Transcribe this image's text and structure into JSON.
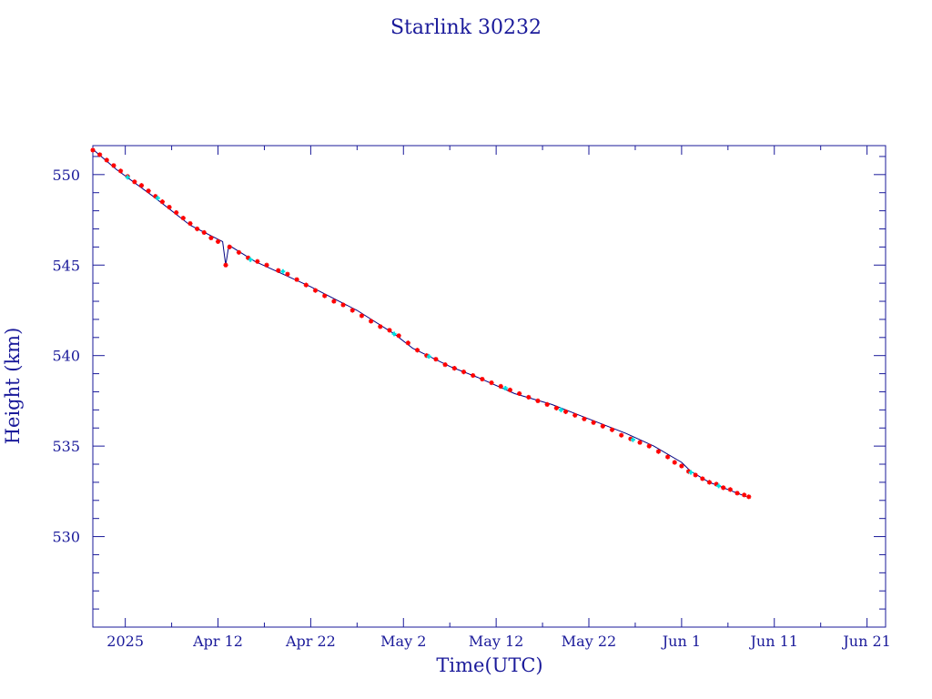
{
  "chart_data": {
    "type": "scatter",
    "title": "Starlink 30232",
    "xlabel": "Time(UTC)",
    "ylabel": "Height (km)",
    "x_axis": {
      "kind": "date",
      "range": [
        "2025-03-29T12:00",
        "2025-06-23T00:00"
      ],
      "tick_labels": [
        {
          "date": "2025-04-02",
          "label": "2025"
        },
        {
          "date": "2025-04-12",
          "label": "Apr 12"
        },
        {
          "date": "2025-04-22",
          "label": "Apr 22"
        },
        {
          "date": "2025-05-02",
          "label": "May  2"
        },
        {
          "date": "2025-05-12",
          "label": "May 12"
        },
        {
          "date": "2025-05-22",
          "label": "May 22"
        },
        {
          "date": "2025-06-01",
          "label": "Jun  1"
        },
        {
          "date": "2025-06-11",
          "label": "Jun 11"
        },
        {
          "date": "2025-06-21",
          "label": "Jun 21"
        }
      ]
    },
    "y_axis": {
      "range": [
        525,
        551.6
      ],
      "ticks": [
        530,
        535,
        540,
        545,
        550
      ],
      "minor_step": 1
    },
    "grid": false,
    "series": [
      {
        "style": "line",
        "color": "#000080",
        "points": [
          [
            "2025-03-29T12:00",
            551.4
          ],
          [
            "2025-04-01T00:00",
            550.3
          ],
          [
            "2025-04-05T00:00",
            548.8
          ],
          [
            "2025-04-09T00:00",
            547.2
          ],
          [
            "2025-04-12T12:00",
            546.3
          ],
          [
            "2025-04-12T20:00",
            545.0
          ],
          [
            "2025-04-13T04:00",
            546.1
          ],
          [
            "2025-04-16T00:00",
            545.2
          ],
          [
            "2025-04-22T00:00",
            543.8
          ],
          [
            "2025-04-27T00:00",
            542.5
          ],
          [
            "2025-05-01T00:00",
            541.2
          ],
          [
            "2025-05-03T00:00",
            540.4
          ],
          [
            "2025-05-07T00:00",
            539.4
          ],
          [
            "2025-05-10T00:00",
            538.8
          ],
          [
            "2025-05-14T00:00",
            537.9
          ],
          [
            "2025-05-18T00:00",
            537.3
          ],
          [
            "2025-05-22T00:00",
            536.5
          ],
          [
            "2025-05-26T00:00",
            535.7
          ],
          [
            "2025-05-29T00:00",
            535.0
          ],
          [
            "2025-06-01T00:00",
            534.1
          ],
          [
            "2025-06-02T00:00",
            533.6
          ],
          [
            "2025-06-04T00:00",
            533.0
          ],
          [
            "2025-06-07T00:00",
            532.4
          ],
          [
            "2025-06-08T00:00",
            532.2
          ]
        ]
      },
      {
        "style": "markers",
        "color": "#ff0000",
        "marker": "star",
        "points": [
          [
            "2025-03-29T12:00",
            551.35
          ],
          [
            "2025-03-30T06:00",
            551.1
          ],
          [
            "2025-03-31T00:00",
            550.8
          ],
          [
            "2025-03-31T18:00",
            550.5
          ],
          [
            "2025-04-01T12:00",
            550.2
          ],
          [
            "2025-04-02T06:00",
            549.9
          ],
          [
            "2025-04-03T00:00",
            549.6
          ],
          [
            "2025-04-03T18:00",
            549.4
          ],
          [
            "2025-04-04T12:00",
            549.1
          ],
          [
            "2025-04-05T06:00",
            548.8
          ],
          [
            "2025-04-06T00:00",
            548.5
          ],
          [
            "2025-04-06T18:00",
            548.2
          ],
          [
            "2025-04-07T12:00",
            547.9
          ],
          [
            "2025-04-08T06:00",
            547.6
          ],
          [
            "2025-04-09T00:00",
            547.3
          ],
          [
            "2025-04-09T18:00",
            547.0
          ],
          [
            "2025-04-10T12:00",
            546.8
          ],
          [
            "2025-04-11T06:00",
            546.5
          ],
          [
            "2025-04-12T00:00",
            546.3
          ],
          [
            "2025-04-12T20:00",
            545.0
          ],
          [
            "2025-04-13T06:00",
            546.0
          ],
          [
            "2025-04-14T06:00",
            545.7
          ],
          [
            "2025-04-15T06:00",
            545.4
          ],
          [
            "2025-04-16T06:00",
            545.2
          ],
          [
            "2025-04-17T06:00",
            545.0
          ],
          [
            "2025-04-18T12:00",
            544.7
          ],
          [
            "2025-04-19T12:00",
            544.5
          ],
          [
            "2025-04-20T12:00",
            544.2
          ],
          [
            "2025-04-21T12:00",
            543.9
          ],
          [
            "2025-04-22T12:00",
            543.6
          ],
          [
            "2025-04-23T12:00",
            543.3
          ],
          [
            "2025-04-24T12:00",
            543.0
          ],
          [
            "2025-04-25T12:00",
            542.8
          ],
          [
            "2025-04-26T12:00",
            542.5
          ],
          [
            "2025-04-27T12:00",
            542.2
          ],
          [
            "2025-04-28T12:00",
            541.9
          ],
          [
            "2025-04-29T12:00",
            541.6
          ],
          [
            "2025-04-30T12:00",
            541.4
          ],
          [
            "2025-05-01T12:00",
            541.1
          ],
          [
            "2025-05-02T12:00",
            540.7
          ],
          [
            "2025-05-03T12:00",
            540.3
          ],
          [
            "2025-05-04T12:00",
            540.0
          ],
          [
            "2025-05-05T12:00",
            539.8
          ],
          [
            "2025-05-06T12:00",
            539.5
          ],
          [
            "2025-05-07T12:00",
            539.3
          ],
          [
            "2025-05-08T12:00",
            539.1
          ],
          [
            "2025-05-09T12:00",
            538.9
          ],
          [
            "2025-05-10T12:00",
            538.7
          ],
          [
            "2025-05-11T12:00",
            538.5
          ],
          [
            "2025-05-12T12:00",
            538.3
          ],
          [
            "2025-05-13T12:00",
            538.1
          ],
          [
            "2025-05-14T12:00",
            537.9
          ],
          [
            "2025-05-15T12:00",
            537.7
          ],
          [
            "2025-05-16T12:00",
            537.5
          ],
          [
            "2025-05-17T12:00",
            537.3
          ],
          [
            "2025-05-18T12:00",
            537.1
          ],
          [
            "2025-05-19T12:00",
            536.9
          ],
          [
            "2025-05-20T12:00",
            536.7
          ],
          [
            "2025-05-21T12:00",
            536.5
          ],
          [
            "2025-05-22T12:00",
            536.3
          ],
          [
            "2025-05-23T12:00",
            536.1
          ],
          [
            "2025-05-24T12:00",
            535.9
          ],
          [
            "2025-05-25T12:00",
            535.6
          ],
          [
            "2025-05-26T12:00",
            535.4
          ],
          [
            "2025-05-27T12:00",
            535.2
          ],
          [
            "2025-05-28T12:00",
            535.0
          ],
          [
            "2025-05-29T12:00",
            534.7
          ],
          [
            "2025-05-30T12:00",
            534.4
          ],
          [
            "2025-05-31T06:00",
            534.1
          ],
          [
            "2025-06-01T00:00",
            533.9
          ],
          [
            "2025-06-01T18:00",
            533.6
          ],
          [
            "2025-06-02T12:00",
            533.4
          ],
          [
            "2025-06-03T06:00",
            533.2
          ],
          [
            "2025-06-04T00:00",
            533.0
          ],
          [
            "2025-06-04T18:00",
            532.9
          ],
          [
            "2025-06-05T12:00",
            532.7
          ],
          [
            "2025-06-06T06:00",
            532.6
          ],
          [
            "2025-06-07T00:00",
            532.4
          ],
          [
            "2025-06-07T18:00",
            532.3
          ],
          [
            "2025-06-08T06:00",
            532.2
          ]
        ]
      },
      {
        "style": "markers",
        "color": "#00e0e0",
        "marker": "plus",
        "points": [
          [
            "2025-04-02T06:00",
            549.85
          ],
          [
            "2025-04-05T12:00",
            548.7
          ],
          [
            "2025-04-15T12:00",
            545.3
          ],
          [
            "2025-04-19T00:00",
            544.65
          ],
          [
            "2025-05-01T00:00",
            541.2
          ],
          [
            "2025-05-04T18:00",
            539.95
          ],
          [
            "2025-05-13T00:00",
            538.2
          ],
          [
            "2025-05-19T00:00",
            537.0
          ],
          [
            "2025-05-26T18:00",
            535.35
          ],
          [
            "2025-06-02T00:00",
            533.55
          ],
          [
            "2025-06-05T00:00",
            532.8
          ]
        ]
      }
    ]
  }
}
